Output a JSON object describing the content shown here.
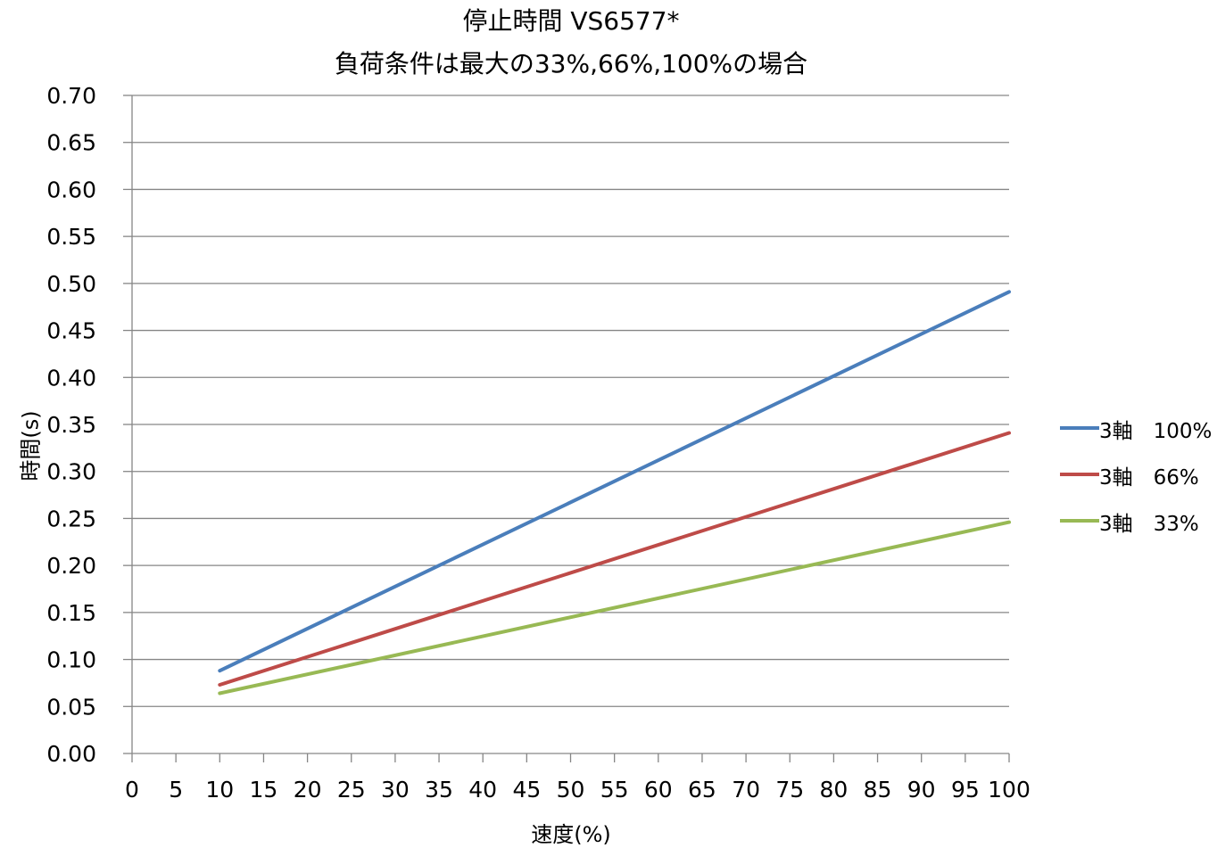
{
  "chart_data": {
    "type": "line",
    "title_line1": "停止時間 VS6577*",
    "title_line2": "負荷条件は最大の33%,66%,100%の場合",
    "xlabel": "速度(%)",
    "ylabel": "時間(s)",
    "xlim": [
      0,
      100
    ],
    "ylim": [
      0,
      0.7
    ],
    "x_ticks": [
      "0",
      "5",
      "10",
      "15",
      "20",
      "25",
      "30",
      "35",
      "40",
      "45",
      "50",
      "55",
      "60",
      "65",
      "70",
      "75",
      "80",
      "85",
      "90",
      "95",
      "100"
    ],
    "y_ticks": [
      "0.00",
      "0.05",
      "0.10",
      "0.15",
      "0.20",
      "0.25",
      "0.30",
      "0.35",
      "0.40",
      "0.45",
      "0.50",
      "0.55",
      "0.60",
      "0.65",
      "0.70"
    ],
    "grid": "horizontal",
    "legend_position": "right",
    "series": [
      {
        "name": "3軸　100%",
        "color": "#4a7ebb",
        "x": [
          10,
          100
        ],
        "y": [
          0.088,
          0.491
        ]
      },
      {
        "name": "3軸　66%",
        "color": "#be4b48",
        "x": [
          10,
          100
        ],
        "y": [
          0.073,
          0.341
        ]
      },
      {
        "name": "3軸　33%",
        "color": "#98b954",
        "x": [
          10,
          100
        ],
        "y": [
          0.064,
          0.246
        ]
      }
    ]
  }
}
